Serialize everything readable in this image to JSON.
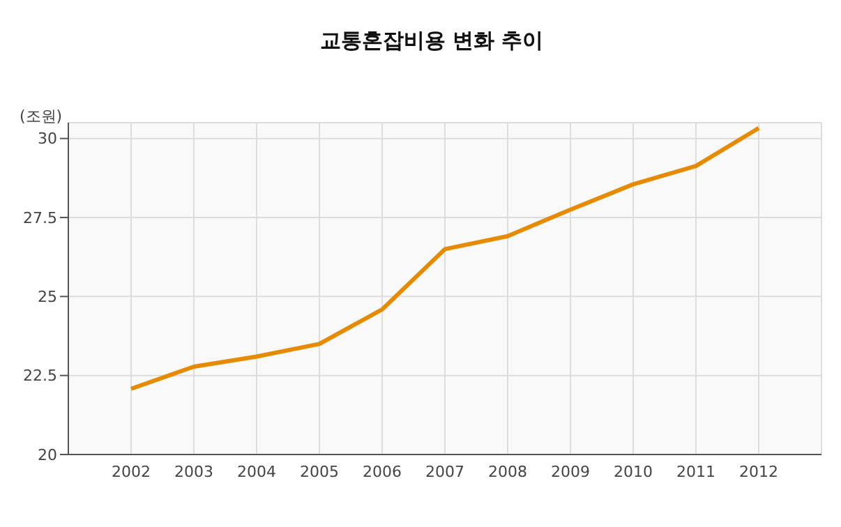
{
  "chart_data": {
    "type": "line",
    "title": "교통혼잡비용 변화 추이",
    "ylabel": "(조원)",
    "x": [
      2002,
      2003,
      2004,
      2005,
      2006,
      2007,
      2008,
      2009,
      2010,
      2011,
      2012
    ],
    "series": [
      {
        "color": "#e68a00",
        "values": [
          22.08,
          22.78,
          23.1,
          23.5,
          24.59,
          26.5,
          26.91,
          27.75,
          28.55,
          29.13,
          30.33
        ]
      }
    ],
    "xlim": [
      2001,
      2013
    ],
    "xticks": [
      2002,
      2003,
      2004,
      2005,
      2006,
      2007,
      2008,
      2009,
      2010,
      2011,
      2012
    ],
    "ylim": [
      20,
      30.5
    ],
    "yticks": [
      20,
      22.5,
      25,
      27.5,
      30
    ],
    "grid": true,
    "legend": false,
    "marker": "none",
    "line_style": "solid"
  }
}
